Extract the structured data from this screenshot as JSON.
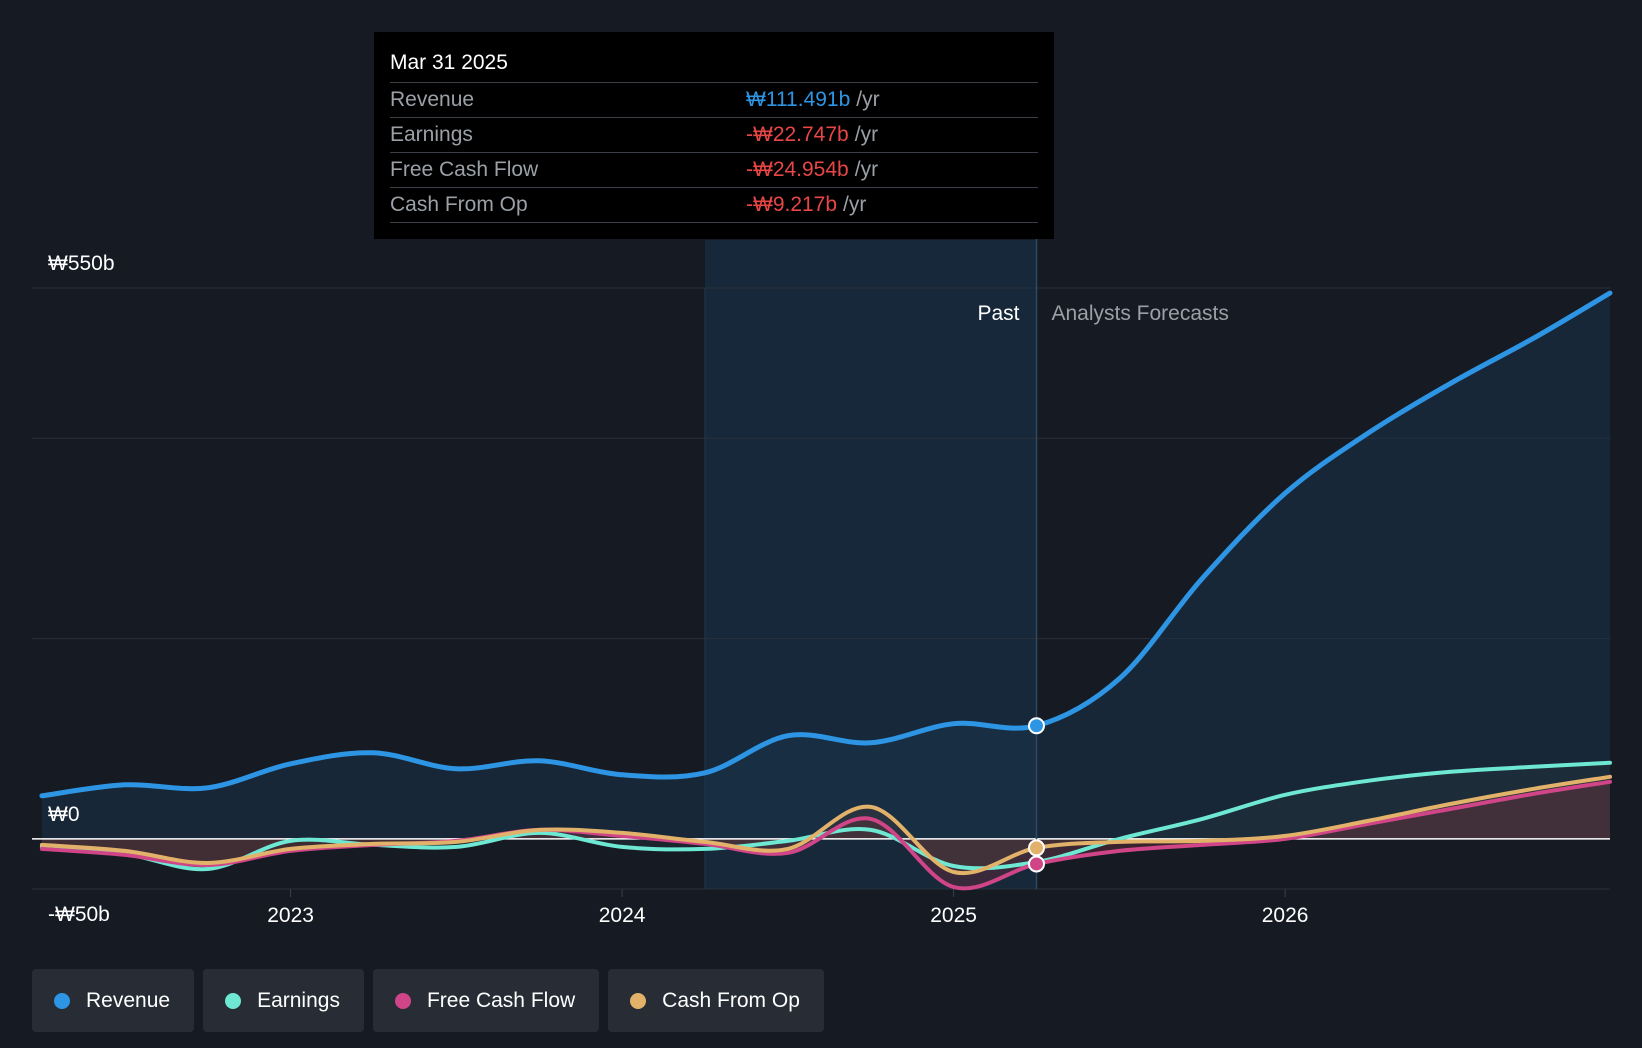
{
  "tooltip": {
    "date": "Mar 31 2025",
    "rows": [
      {
        "label": "Revenue",
        "value": "₩111.491b",
        "unit": "/yr",
        "color": "#2d95e3"
      },
      {
        "label": "Earnings",
        "value": "-₩22.747b",
        "unit": "/yr",
        "color": "#e84646"
      },
      {
        "label": "Free Cash Flow",
        "value": "-₩24.954b",
        "unit": "/yr",
        "color": "#e84646"
      },
      {
        "label": "Cash From Op",
        "value": "-₩9.217b",
        "unit": "/yr",
        "color": "#e84646"
      }
    ]
  },
  "legend": [
    {
      "label": "Revenue",
      "color": "#2d95e3"
    },
    {
      "label": "Earnings",
      "color": "#6ee7d3"
    },
    {
      "label": "Free Cash Flow",
      "color": "#cf4587"
    },
    {
      "label": "Cash From Op",
      "color": "#e3b26a"
    }
  ],
  "chart_data": {
    "type": "line",
    "title": "",
    "y_tick_labels": [
      "₩550b",
      "₩0",
      "-₩50b"
    ],
    "ylim": [
      -50,
      550
    ],
    "xlim": [
      2022.22,
      2026.98
    ],
    "x_ticks": [
      2023,
      2024,
      2025,
      2026
    ],
    "x_tick_labels": [
      "2023",
      "2024",
      "2025",
      "2026"
    ],
    "past_label": "Past",
    "forecast_label": "Analysts Forecasts",
    "past_highlight_start": 2024.25,
    "forecast_start": 2025.25,
    "series": [
      {
        "name": "Revenue",
        "color": "#2d95e3",
        "x": [
          2022.25,
          2022.5,
          2022.75,
          2023.0,
          2023.25,
          2023.5,
          2023.75,
          2024.0,
          2024.25,
          2024.5,
          2024.75,
          2025.0,
          2025.25,
          2025.5,
          2025.75,
          2026.0,
          2026.25,
          2026.5,
          2026.75,
          2026.98
        ],
        "y": [
          43,
          54,
          51,
          75,
          86,
          70,
          78,
          64,
          66,
          103,
          96,
          115,
          113,
          160,
          260,
          345,
          405,
          455,
          500,
          545
        ]
      },
      {
        "name": "Earnings",
        "color": "#6ee7d3",
        "x": [
          2022.25,
          2022.5,
          2022.75,
          2023.0,
          2023.25,
          2023.5,
          2023.75,
          2024.0,
          2024.25,
          2024.5,
          2024.75,
          2025.0,
          2025.25,
          2025.5,
          2025.75,
          2026.0,
          2026.25,
          2026.5,
          2026.75,
          2026.98
        ],
        "y": [
          -8,
          -15,
          -30,
          -2,
          -6,
          -8,
          6,
          -8,
          -10,
          -2,
          9,
          -27,
          -23,
          0,
          20,
          44,
          58,
          67,
          72,
          76
        ]
      },
      {
        "name": "Free Cash Flow",
        "color": "#cf4587",
        "x": [
          2022.25,
          2022.5,
          2022.75,
          2023.0,
          2023.25,
          2023.5,
          2023.75,
          2024.0,
          2024.25,
          2024.5,
          2024.75,
          2025.0,
          2025.25,
          2025.5,
          2025.75,
          2026.0,
          2026.25,
          2026.5,
          2026.75,
          2026.98
        ],
        "y": [
          -10,
          -16,
          -26,
          -12,
          -6,
          -2,
          9,
          3,
          -5,
          -14,
          20,
          -48,
          -25,
          -12,
          -6,
          0,
          15,
          30,
          45,
          57
        ]
      },
      {
        "name": "Cash From Op",
        "color": "#e3b26a",
        "x": [
          2022.25,
          2022.5,
          2022.75,
          2023.0,
          2023.25,
          2023.5,
          2023.75,
          2024.0,
          2024.25,
          2024.5,
          2024.75,
          2025.0,
          2025.25,
          2025.5,
          2025.75,
          2026.0,
          2026.25,
          2026.5,
          2026.75,
          2026.98
        ],
        "y": [
          -6,
          -12,
          -24,
          -10,
          -5,
          -3,
          9,
          6,
          -3,
          -10,
          32,
          -33,
          -9,
          -3,
          -2,
          3,
          18,
          35,
          50,
          62
        ]
      }
    ],
    "highlight_x": 2025.25
  }
}
